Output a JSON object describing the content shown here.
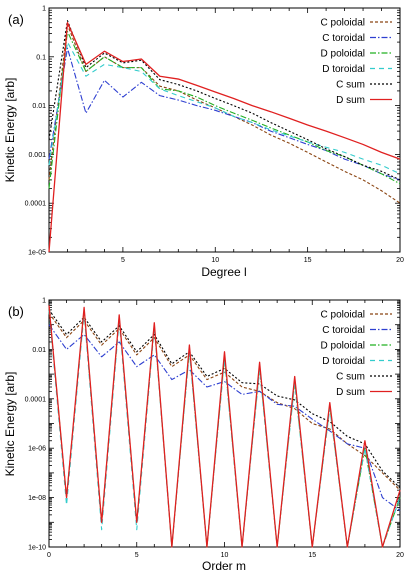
{
  "chart_data": [
    {
      "type": "line",
      "panel_label": "(a)",
      "xlabel": "Degree l",
      "ylabel": "Kinetic Energy [arb]",
      "xscale": "linear",
      "yscale": "log",
      "xlim": [
        1,
        20
      ],
      "ylim": [
        1e-05,
        1
      ],
      "x_ticks": [
        5,
        10,
        15,
        20
      ],
      "x_tick_labels": [
        "5",
        "10",
        "15",
        "20"
      ],
      "y_ticks": [
        1e-05,
        0.0001,
        0.001,
        0.01,
        0.1,
        1
      ],
      "y_tick_labels": [
        "1e-05",
        "0.0001",
        "0.001",
        "0.01",
        "0.1",
        "1"
      ],
      "legend_position": "top-right",
      "x": [
        1,
        2,
        3,
        4,
        5,
        6,
        7,
        8,
        9,
        10,
        11,
        12,
        13,
        14,
        15,
        16,
        17,
        18,
        19,
        20
      ],
      "series": [
        {
          "name": "C poloidal",
          "color": "#8B4513",
          "dash": "3,2",
          "values": [
            0.0003,
            0.45,
            0.05,
            0.1,
            0.06,
            0.06,
            0.025,
            0.02,
            0.013,
            0.009,
            0.006,
            0.004,
            0.0025,
            0.0017,
            0.0011,
            0.0007,
            0.00045,
            0.0003,
            0.00018,
            0.0001
          ]
        },
        {
          "name": "C toroidal",
          "color": "#2E3FD0",
          "dash": "6,2,1.5,2",
          "values": [
            0.0008,
            0.15,
            0.007,
            0.033,
            0.015,
            0.03,
            0.016,
            0.013,
            0.01,
            0.008,
            0.006,
            0.0045,
            0.003,
            0.0022,
            0.0016,
            0.0012,
            0.0008,
            0.0006,
            0.0004,
            0.0003
          ]
        },
        {
          "name": "D poloidal",
          "color": "#22B022",
          "dash": "6,2,1.5,2",
          "values": [
            0.0002,
            0.33,
            0.05,
            0.1,
            0.06,
            0.06,
            0.022,
            0.02,
            0.015,
            0.01,
            0.007,
            0.005,
            0.0035,
            0.0025,
            0.0018,
            0.0012,
            0.0009,
            0.0006,
            0.0004,
            0.00025
          ]
        },
        {
          "name": "D toroidal",
          "color": "#33CCCC",
          "dash": "5,4",
          "values": [
            0.0006,
            0.2,
            0.04,
            0.07,
            0.06,
            0.05,
            0.022,
            0.016,
            0.012,
            0.009,
            0.006,
            0.0045,
            0.0032,
            0.0024,
            0.0018,
            0.0014,
            0.0011,
            0.0008,
            0.0006,
            0.0004
          ]
        },
        {
          "name": "C sum",
          "color": "#000000",
          "dash": "2,2",
          "values": [
            0.002,
            0.55,
            0.06,
            0.12,
            0.075,
            0.085,
            0.034,
            0.027,
            0.02,
            0.014,
            0.01,
            0.007,
            0.0045,
            0.003,
            0.002,
            0.0013,
            0.0009,
            0.0006,
            0.00045,
            0.0003
          ]
        },
        {
          "name": "D sum",
          "color": "#E02020",
          "dash": "",
          "values": [
            1e-05,
            0.5,
            0.07,
            0.13,
            0.08,
            0.09,
            0.04,
            0.035,
            0.026,
            0.019,
            0.014,
            0.01,
            0.0075,
            0.0055,
            0.004,
            0.003,
            0.0022,
            0.0016,
            0.0011,
            0.0008
          ]
        }
      ]
    },
    {
      "type": "line",
      "panel_label": "(b)",
      "xlabel": "Order m",
      "ylabel": "Kinetic Energy [arb]",
      "xscale": "linear",
      "yscale": "log",
      "xlim": [
        0,
        20
      ],
      "ylim": [
        1e-10,
        1
      ],
      "x_ticks": [
        0,
        5,
        10,
        15,
        20
      ],
      "x_tick_labels": [
        "0",
        "5",
        "10",
        "15",
        "20"
      ],
      "y_ticks": [
        1e-10,
        1e-08,
        1e-06,
        0.0001,
        0.01,
        1
      ],
      "y_tick_labels": [
        "1e-10",
        "1e-08",
        "1e-06",
        "0.0001",
        "0.01",
        "1"
      ],
      "legend_position": "top-right",
      "x": [
        0,
        1,
        2,
        3,
        4,
        5,
        6,
        7,
        8,
        9,
        10,
        11,
        12,
        13,
        14,
        15,
        16,
        17,
        18,
        19,
        20
      ],
      "series": [
        {
          "name": "C poloidal",
          "color": "#8B4513",
          "dash": "3,2",
          "values": [
            0.3,
            0.03,
            0.15,
            0.015,
            0.07,
            0.006,
            0.03,
            0.002,
            0.006,
            0.0006,
            0.0012,
            0.0003,
            0.0002,
            7e-05,
            4e-05,
            1e-05,
            6e-06,
            1.5e-06,
            5e-07,
            1e-07,
            2e-08
          ]
        },
        {
          "name": "C toroidal",
          "color": "#2E3FD0",
          "dash": "6,2,1.5,2",
          "values": [
            0.1,
            0.01,
            0.04,
            0.005,
            0.02,
            0.002,
            0.006,
            0.0006,
            0.0015,
            0.0003,
            0.0005,
            0.00015,
            0.0002,
            6e-05,
            5e-05,
            1.5e-05,
            5e-06,
            1.5e-06,
            1e-06,
            1e-08,
            3e-09
          ]
        },
        {
          "name": "D poloidal",
          "color": "#22B022",
          "dash": "6,2,1.5,2",
          "values": [
            0.5,
            1e-08,
            0.4,
            1e-09,
            0.2,
            1e-09,
            0.1,
            1e-10,
            0.01,
            1e-10,
            0.005,
            1e-10,
            0.002,
            1e-10,
            0.0005,
            1e-10,
            5e-05,
            1e-10,
            1e-06,
            1e-10,
            1e-08
          ]
        },
        {
          "name": "D toroidal",
          "color": "#33CCCC",
          "dash": "5,4",
          "values": [
            0.4,
            5e-09,
            0.3,
            5e-10,
            0.15,
            5e-10,
            0.08,
            1e-10,
            0.008,
            1e-10,
            0.004,
            1e-10,
            0.0015,
            1e-10,
            0.0004,
            1e-10,
            4e-05,
            1e-10,
            1e-06,
            1e-10,
            1e-08
          ]
        },
        {
          "name": "C sum",
          "color": "#000000",
          "dash": "2,2",
          "values": [
            0.4,
            0.04,
            0.2,
            0.02,
            0.09,
            0.008,
            0.04,
            0.0026,
            0.008,
            0.0008,
            0.0017,
            0.00045,
            0.0004,
            0.00013,
            9e-05,
            2.5e-05,
            1.2e-05,
            3e-06,
            1.5e-06,
            1.2e-07,
            2.5e-08
          ]
        },
        {
          "name": "D sum",
          "color": "#E02020",
          "dash": "",
          "values": [
            0.6,
            1e-08,
            0.5,
            1e-09,
            0.25,
            1e-09,
            0.12,
            1e-10,
            0.015,
            1e-10,
            0.008,
            1e-10,
            0.003,
            1e-10,
            0.0008,
            1e-10,
            7e-05,
            1e-10,
            2e-06,
            1e-10,
            2e-08
          ]
        }
      ]
    }
  ]
}
